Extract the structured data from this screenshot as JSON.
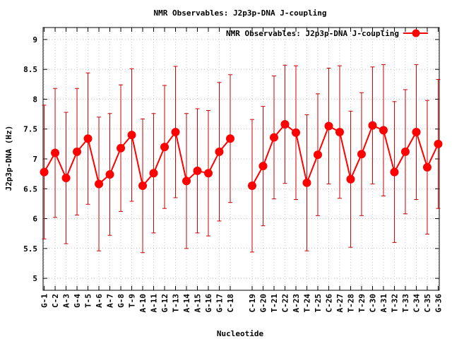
{
  "chart_data": {
    "type": "line",
    "title": "NMR Observables: J2p3p-DNA J-coupling",
    "xlabel": "Nucleotide",
    "ylabel": "J2p3p-DNA (Hz)",
    "ylim": [
      4.8,
      9.2
    ],
    "yticks": [
      5,
      5.5,
      6,
      6.5,
      7,
      7.5,
      8,
      8.5,
      9
    ],
    "legend": {
      "position": "top-right",
      "entries": [
        "NMR Observables: J2p3p-DNA J-coupling"
      ]
    },
    "colors": {
      "series": "#ff0000",
      "errorbar": "#cc0000",
      "axis": "#000000",
      "grid": "#a0a0a0"
    },
    "grid": true,
    "categories": [
      "G-1",
      "C-2",
      "A-3",
      "G-4",
      "T-5",
      "A-6",
      "A-7",
      "G-8",
      "T-9",
      "A-10",
      "A-11",
      "G-12",
      "T-13",
      "A-14",
      "A-15",
      "G-16",
      "G-17",
      "C-18",
      "C-19",
      "G-20",
      "T-21",
      "C-22",
      "A-23",
      "T-24",
      "T-25",
      "C-26",
      "A-27",
      "T-28",
      "T-29",
      "C-30",
      "A-31",
      "T-32",
      "T-33",
      "C-34",
      "C-35",
      "G-36"
    ],
    "x": [
      1,
      2,
      3,
      4,
      5,
      6,
      7,
      8,
      9,
      10,
      11,
      12,
      13,
      14,
      15,
      16,
      17,
      18,
      20,
      21,
      22,
      23,
      24,
      25,
      26,
      27,
      28,
      29,
      30,
      31,
      32,
      33,
      34,
      35,
      36,
      37
    ],
    "xlim": [
      0.9,
      37.1
    ],
    "series": [
      {
        "values": [
          6.78,
          7.1,
          6.68,
          7.12,
          7.34,
          6.58,
          6.74,
          7.18,
          7.4,
          6.55,
          6.76,
          7.2,
          7.45,
          6.63,
          6.8,
          6.76,
          7.12,
          7.34,
          6.55,
          6.88,
          7.36,
          7.58,
          7.44,
          6.6,
          7.07,
          7.55,
          7.45,
          6.66,
          7.08,
          7.56,
          7.48,
          6.78,
          7.12,
          7.45,
          6.86,
          7.25
        ],
        "errors": [
          1.12,
          1.08,
          1.1,
          1.06,
          1.1,
          1.12,
          1.02,
          1.06,
          1.11,
          1.12,
          1.0,
          1.03,
          1.1,
          1.13,
          1.04,
          1.05,
          1.16,
          1.07,
          1.11,
          1.0,
          1.03,
          0.99,
          1.12,
          1.14,
          1.02,
          0.97,
          1.11,
          1.14,
          1.03,
          0.98,
          1.1,
          1.18,
          1.04,
          1.13,
          1.12,
          1.08
        ]
      }
    ]
  }
}
